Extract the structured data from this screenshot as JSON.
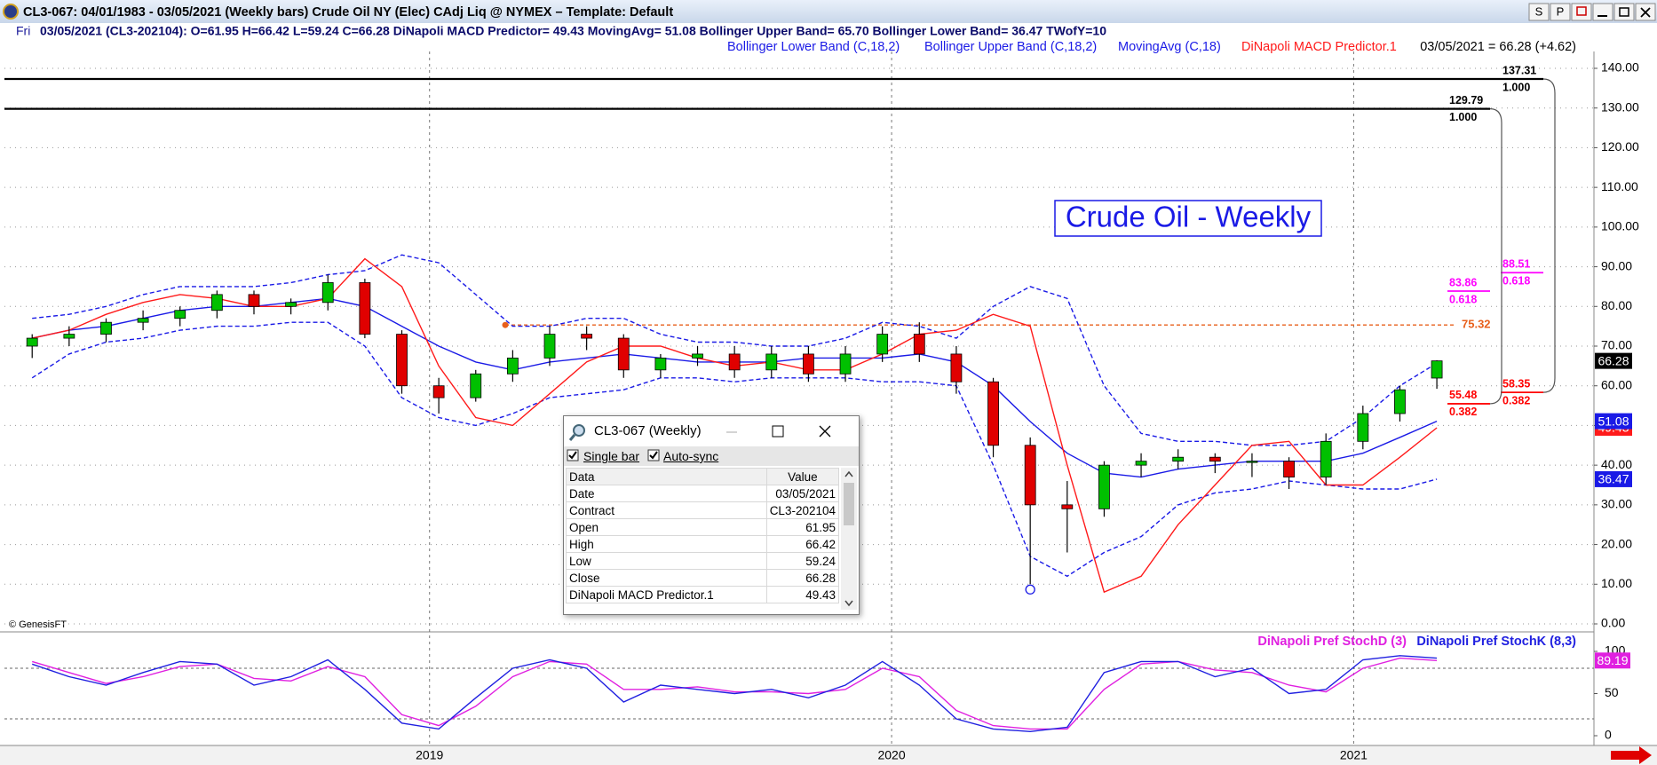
{
  "window": {
    "title": "CL3-067:  04/01/1983 - 03/05/2021  (Weekly bars)   Crude Oil NY (Elec) CAdj Liq @ NYMEX  –  Template: Default",
    "buttons": [
      "S",
      "P"
    ]
  },
  "status": {
    "day": "Fri",
    "text": "03/05/2021 (CL3-202104):  O=61.95  H=66.42  L=59.24  C=66.28  DiNapoli MACD Predictor= 49.43  MovingAvg= 51.08  Bollinger Upper Band= 65.70  Bollinger Lower Band= 36.47  TWofY=10"
  },
  "last_quote": "03/05/2021 = 66.28 (+4.62)",
  "watermark": "© GenesisFT",
  "data_window": {
    "title": "CL3-067 (Weekly)",
    "options": [
      "Single bar",
      "Auto-sync"
    ],
    "header": [
      "Data",
      "Value"
    ],
    "rows": [
      [
        "Date",
        "03/05/2021"
      ],
      [
        "Contract",
        "CL3-202104"
      ],
      [
        "Open",
        "61.95"
      ],
      [
        "High",
        "66.42"
      ],
      [
        "Low",
        "59.24"
      ],
      [
        "Close",
        "66.28"
      ],
      [
        "DiNapoli MACD Predictor.1",
        "49.43"
      ]
    ]
  },
  "chart_data": [
    {
      "type": "candlestick",
      "title": "Crude Oil - Weekly",
      "up_color": "#00c000",
      "down_color": "#e00000",
      "grid": true,
      "x": [
        2018.14,
        2018.22,
        2018.3,
        2018.38,
        2018.46,
        2018.54,
        2018.62,
        2018.7,
        2018.78,
        2018.86,
        2018.94,
        2019.02,
        2019.1,
        2019.18,
        2019.26,
        2019.34,
        2019.42,
        2019.5,
        2019.58,
        2019.66,
        2019.74,
        2019.82,
        2019.9,
        2019.98,
        2020.06,
        2020.14,
        2020.22,
        2020.3,
        2020.38,
        2020.46,
        2020.54,
        2020.62,
        2020.7,
        2020.78,
        2020.86,
        2020.94,
        2021.02,
        2021.1,
        2021.18
      ],
      "open": [
        70,
        72,
        73,
        76,
        77,
        79,
        83,
        80,
        81,
        86,
        73,
        60,
        57,
        63,
        67,
        73,
        72,
        64,
        67,
        68,
        64,
        68,
        63,
        68,
        73,
        68,
        61,
        45,
        30,
        29,
        40,
        41,
        42,
        41,
        41,
        37,
        46,
        53,
        61.95
      ],
      "high": [
        73,
        75,
        77,
        79,
        80,
        84,
        84,
        82,
        88,
        87,
        74,
        62,
        64,
        69,
        75,
        75,
        73,
        68,
        70,
        70,
        70,
        70,
        70,
        75,
        76,
        70,
        62,
        47,
        36,
        41,
        43,
        44,
        43,
        43,
        42,
        48,
        55,
        60,
        66.42
      ],
      "low": [
        67,
        70,
        71,
        74,
        75,
        77,
        78,
        78,
        79,
        72,
        58,
        53,
        56,
        61,
        65,
        69,
        62,
        62,
        65,
        62,
        62,
        61,
        61,
        66,
        66,
        58,
        42,
        10,
        18,
        27,
        37,
        39,
        38,
        37,
        34,
        35,
        44,
        51,
        59.24
      ],
      "close": [
        72,
        73,
        76,
        77,
        79,
        83,
        80,
        81,
        86,
        73,
        60,
        57,
        63,
        67,
        73,
        72,
        64,
        67,
        68,
        64,
        68,
        63,
        68,
        73,
        68,
        61,
        45,
        30,
        29,
        40,
        41,
        42,
        41,
        41,
        37,
        46,
        53,
        59,
        66.28
      ],
      "series": [
        {
          "name": "Bollinger Lower Band (C,18,2)",
          "color": "#1a1ae6",
          "dash": true,
          "values": [
            62,
            68,
            71,
            72,
            74,
            75,
            75,
            76,
            76,
            70,
            57,
            52,
            50,
            53,
            57,
            58,
            59,
            62,
            62,
            61,
            62,
            62,
            62,
            61,
            61,
            60,
            40,
            17,
            12,
            18,
            22,
            30,
            33,
            34,
            36,
            35,
            34,
            34,
            36.47
          ]
        },
        {
          "name": "Bollinger Upper Band (C,18,2)",
          "color": "#1a1ae6",
          "dash": true,
          "values": [
            77,
            78,
            80,
            83,
            85,
            85,
            85,
            86,
            88,
            89,
            93,
            91,
            83,
            75,
            75,
            77,
            77,
            73,
            71,
            71,
            70,
            70,
            72,
            76,
            75,
            72,
            80,
            85,
            82,
            60,
            48,
            46,
            46,
            45,
            45,
            46,
            52,
            60,
            65.7
          ]
        },
        {
          "name": "MovingAvg (C,18)",
          "color": "#1a1ae6",
          "dash": false,
          "values": [
            72,
            74,
            75,
            77,
            79,
            80,
            80,
            81,
            82,
            80,
            75,
            70,
            66,
            64,
            66,
            67,
            68,
            67,
            66,
            66,
            66,
            67,
            67,
            67,
            68,
            66,
            60,
            51,
            43,
            38,
            37,
            39,
            40,
            41,
            41,
            41,
            43,
            47,
            51.08
          ]
        },
        {
          "name": "DiNapoli MACD Predictor.1",
          "color": "#ff1a1a",
          "dash": false,
          "values": [
            72,
            74,
            78,
            81,
            83,
            82,
            80,
            80,
            82,
            92,
            85,
            65,
            52,
            50,
            58,
            66,
            70,
            70,
            67,
            65,
            66,
            64,
            64,
            68,
            73,
            74,
            78,
            75,
            40,
            8,
            12,
            25,
            35,
            45,
            46,
            35,
            35,
            42,
            49.43
          ]
        }
      ],
      "xlim": [
        2018.08,
        2021.52
      ],
      "xticks": [
        2019,
        2020,
        2021
      ],
      "ylim": [
        0,
        140
      ],
      "yticks": [
        {
          "value": 0,
          "label": "0.00"
        },
        {
          "value": 10,
          "label": "10.00"
        },
        {
          "value": 20,
          "label": "20.00"
        },
        {
          "value": 30,
          "label": "30.00"
        },
        {
          "value": 40,
          "label": "40.00"
        },
        {
          "value": 50,
          "label": "50.00"
        },
        {
          "value": 60,
          "label": "60.00"
        },
        {
          "value": 70,
          "label": "70.00"
        },
        {
          "value": 80,
          "label": "80.00"
        },
        {
          "value": 90,
          "label": "90.00"
        },
        {
          "value": 100,
          "label": "100.00"
        },
        {
          "value": 110,
          "label": "110.00"
        },
        {
          "value": 120,
          "label": "120.00"
        },
        {
          "value": 130,
          "label": "130.00"
        },
        {
          "value": 140,
          "label": "140.00"
        }
      ],
      "fib_levels": [
        {
          "price": 137.31,
          "ratio": "1.000",
          "color": "#000000"
        },
        {
          "price": 129.79,
          "ratio": "1.000",
          "color": "#000000"
        },
        {
          "price": 88.51,
          "ratio": "0.618",
          "color": "#ff00ff"
        },
        {
          "price": 83.86,
          "ratio": "0.618",
          "color": "#ff00ff"
        },
        {
          "price": 58.35,
          "ratio": "0.382",
          "color": "#ff0000"
        },
        {
          "price": 55.48,
          "ratio": "0.382",
          "color": "#ff0000"
        }
      ],
      "target_line": {
        "price": 75.32,
        "color": "#e8601c"
      }
    },
    {
      "type": "line",
      "x": [
        2018.14,
        2018.22,
        2018.3,
        2018.38,
        2018.46,
        2018.54,
        2018.62,
        2018.7,
        2018.78,
        2018.86,
        2018.94,
        2019.02,
        2019.1,
        2019.18,
        2019.26,
        2019.34,
        2019.42,
        2019.5,
        2019.58,
        2019.66,
        2019.74,
        2019.82,
        2019.9,
        2019.98,
        2020.06,
        2020.14,
        2020.22,
        2020.3,
        2020.38,
        2020.46,
        2020.54,
        2020.62,
        2020.7,
        2020.78,
        2020.86,
        2020.94,
        2021.02,
        2021.1,
        2021.18
      ],
      "series": [
        {
          "name": "DiNapoli Pref StochD (3)",
          "color": "#e020e0",
          "values": [
            88,
            75,
            62,
            70,
            82,
            85,
            68,
            65,
            82,
            70,
            25,
            12,
            35,
            70,
            88,
            85,
            55,
            55,
            58,
            52,
            52,
            50,
            55,
            80,
            70,
            30,
            12,
            8,
            8,
            55,
            85,
            88,
            78,
            75,
            60,
            52,
            80,
            92,
            89.19
          ]
        },
        {
          "name": "DiNapoli Pref StochK (8,3)",
          "color": "#2020e0",
          "values": [
            85,
            70,
            60,
            75,
            88,
            85,
            60,
            70,
            90,
            55,
            15,
            8,
            45,
            80,
            90,
            80,
            40,
            60,
            55,
            50,
            55,
            45,
            60,
            88,
            60,
            20,
            8,
            5,
            10,
            75,
            88,
            88,
            70,
            80,
            50,
            55,
            90,
            95,
            92
          ]
        }
      ],
      "ylim": [
        0,
        100
      ],
      "yticks": [
        0,
        50,
        100
      ],
      "levels": [
        20,
        80
      ]
    }
  ]
}
